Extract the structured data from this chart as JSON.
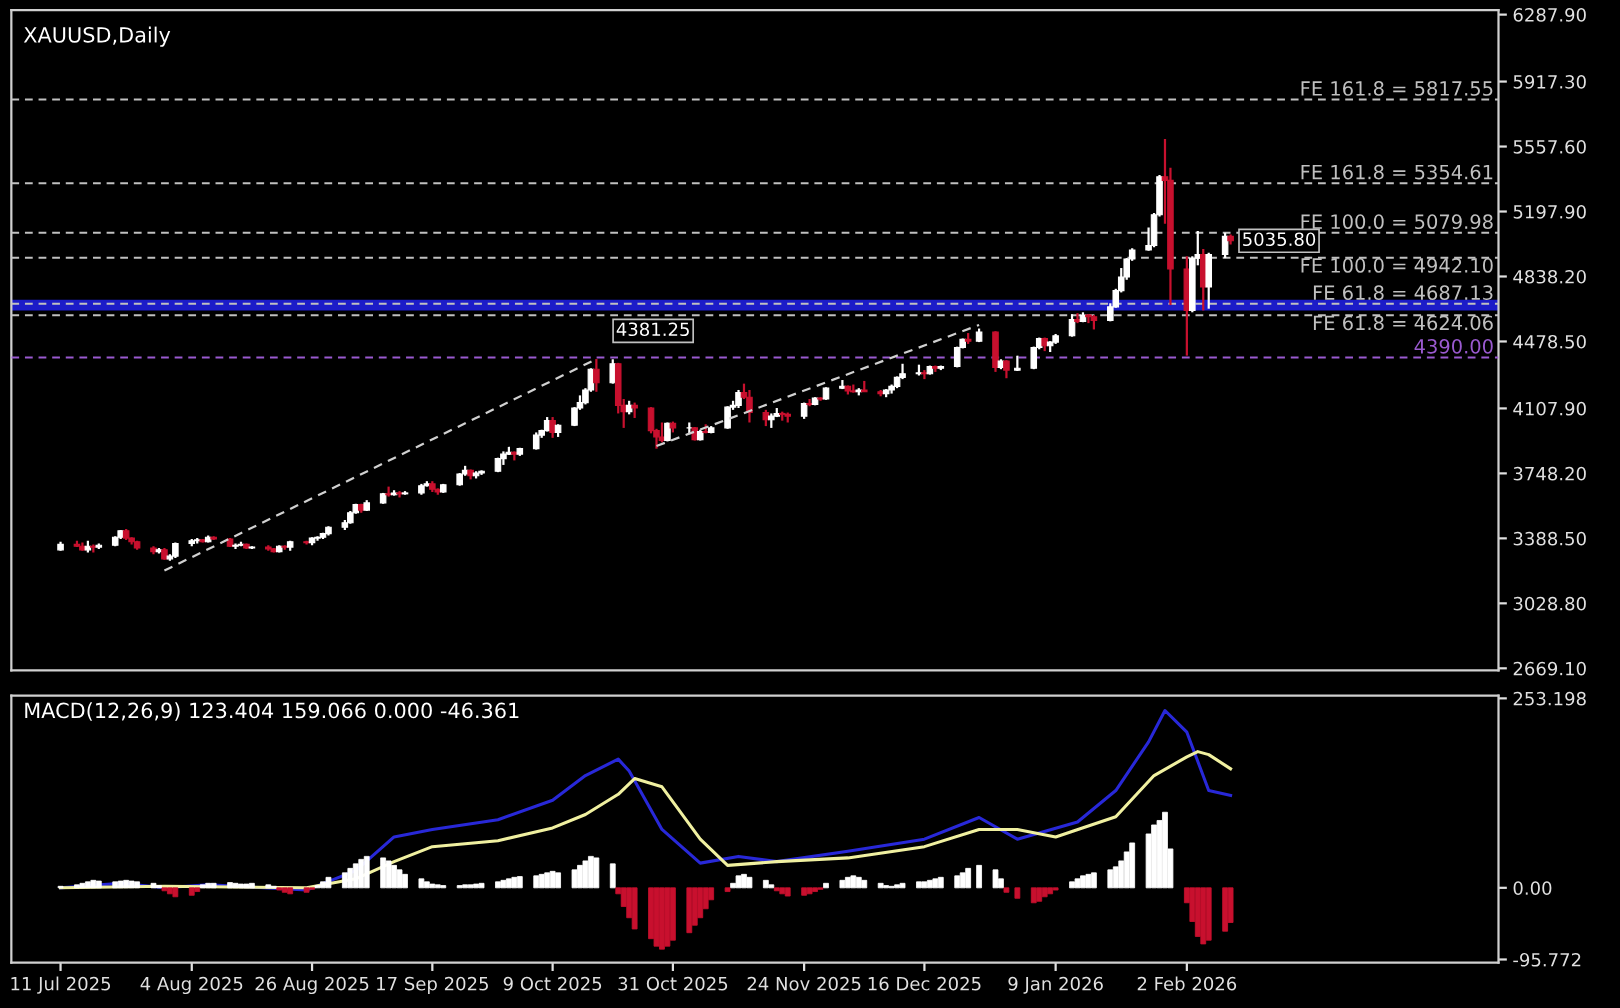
{
  "chart_data": [
    {
      "type": "candlestick",
      "title": "XAUUSD,Daily",
      "x": [
        "2025-07-11",
        "2025-07-14",
        "2025-07-15",
        "2025-07-16",
        "2025-07-17",
        "2025-07-18",
        "2025-07-21",
        "2025-07-22",
        "2025-07-23",
        "2025-07-24",
        "2025-07-25",
        "2025-07-28",
        "2025-07-29",
        "2025-07-30",
        "2025-07-31",
        "2025-08-01",
        "2025-08-04",
        "2025-08-05",
        "2025-08-06",
        "2025-08-07",
        "2025-08-08",
        "2025-08-11",
        "2025-08-12",
        "2025-08-13",
        "2025-08-14",
        "2025-08-15",
        "2025-08-18",
        "2025-08-19",
        "2025-08-20",
        "2025-08-21",
        "2025-08-22",
        "2025-08-25",
        "2025-08-26",
        "2025-08-27",
        "2025-08-28",
        "2025-08-29",
        "2025-09-01",
        "2025-09-02",
        "2025-09-03",
        "2025-09-04",
        "2025-09-05",
        "2025-09-08",
        "2025-09-09",
        "2025-09-10",
        "2025-09-11",
        "2025-09-12",
        "2025-09-15",
        "2025-09-16",
        "2025-09-17",
        "2025-09-18",
        "2025-09-19",
        "2025-09-22",
        "2025-09-23",
        "2025-09-24",
        "2025-09-25",
        "2025-09-26",
        "2025-09-29",
        "2025-09-30",
        "2025-10-01",
        "2025-10-02",
        "2025-10-03",
        "2025-10-06",
        "2025-10-07",
        "2025-10-08",
        "2025-10-09",
        "2025-10-10",
        "2025-10-13",
        "2025-10-14",
        "2025-10-15",
        "2025-10-16",
        "2025-10-17",
        "2025-10-20",
        "2025-10-21",
        "2025-10-22",
        "2025-10-23",
        "2025-10-24",
        "2025-10-27",
        "2025-10-28",
        "2025-10-29",
        "2025-10-30",
        "2025-10-31",
        "2025-11-03",
        "2025-11-04",
        "2025-11-05",
        "2025-11-06",
        "2025-11-07",
        "2025-11-10",
        "2025-11-11",
        "2025-11-12",
        "2025-11-13",
        "2025-11-14",
        "2025-11-17",
        "2025-11-18",
        "2025-11-19",
        "2025-11-20",
        "2025-11-21",
        "2025-11-24",
        "2025-11-25",
        "2025-11-26",
        "2025-11-27",
        "2025-11-28",
        "2025-12-01",
        "2025-12-02",
        "2025-12-03",
        "2025-12-04",
        "2025-12-05",
        "2025-12-08",
        "2025-12-09",
        "2025-12-10",
        "2025-12-11",
        "2025-12-12",
        "2025-12-15",
        "2025-12-16",
        "2025-12-17",
        "2025-12-18",
        "2025-12-19",
        "2025-12-22",
        "2025-12-23",
        "2025-12-24",
        "2025-12-26",
        "2025-12-29",
        "2025-12-30",
        "2025-12-31",
        "2026-01-02",
        "2026-01-05",
        "2026-01-06",
        "2026-01-07",
        "2026-01-08",
        "2026-01-09",
        "2026-01-12",
        "2026-01-13",
        "2026-01-14",
        "2026-01-15",
        "2026-01-16",
        "2026-01-19",
        "2026-01-20",
        "2026-01-21",
        "2026-01-22",
        "2026-01-23",
        "2026-01-26",
        "2026-01-27",
        "2026-01-28",
        "2026-01-29",
        "2026-01-30",
        "2026-02-02",
        "2026-02-03",
        "2026-02-04",
        "2026-02-05",
        "2026-02-06",
        "2026-02-09",
        "2026-02-10"
      ],
      "ohlc": [
        [
          3325,
          3370,
          3320,
          3355
        ],
        [
          3355,
          3375,
          3340,
          3345
        ],
        [
          3345,
          3365,
          3320,
          3325
        ],
        [
          3325,
          3375,
          3310,
          3345
        ],
        [
          3345,
          3355,
          3310,
          3340
        ],
        [
          3340,
          3360,
          3330,
          3350
        ],
        [
          3350,
          3400,
          3345,
          3395
        ],
        [
          3395,
          3435,
          3385,
          3430
        ],
        [
          3430,
          3440,
          3380,
          3390
        ],
        [
          3390,
          3395,
          3355,
          3370
        ],
        [
          3370,
          3375,
          3325,
          3335
        ],
        [
          3335,
          3345,
          3300,
          3315
        ],
        [
          3315,
          3335,
          3305,
          3325
        ],
        [
          3325,
          3335,
          3270,
          3275
        ],
        [
          3275,
          3300,
          3265,
          3290
        ],
        [
          3290,
          3365,
          3280,
          3360
        ],
        [
          3360,
          3385,
          3345,
          3375
        ],
        [
          3375,
          3390,
          3360,
          3380
        ],
        [
          3380,
          3385,
          3365,
          3370
        ],
        [
          3370,
          3405,
          3365,
          3395
        ],
        [
          3395,
          3400,
          3380,
          3385
        ],
        [
          3385,
          3390,
          3340,
          3345
        ],
        [
          3345,
          3360,
          3330,
          3350
        ],
        [
          3350,
          3370,
          3345,
          3355
        ],
        [
          3355,
          3360,
          3330,
          3335
        ],
        [
          3335,
          3345,
          3330,
          3340
        ],
        [
          3340,
          3350,
          3320,
          3330
        ],
        [
          3330,
          3335,
          3310,
          3315
        ],
        [
          3315,
          3350,
          3310,
          3345
        ],
        [
          3345,
          3350,
          3325,
          3340
        ],
        [
          3340,
          3375,
          3320,
          3370
        ],
        [
          3370,
          3375,
          3355,
          3365
        ],
        [
          3365,
          3395,
          3350,
          3390
        ],
        [
          3390,
          3400,
          3375,
          3395
        ],
        [
          3395,
          3420,
          3385,
          3415
        ],
        [
          3415,
          3455,
          3405,
          3450
        ],
        [
          3450,
          3490,
          3435,
          3475
        ],
        [
          3475,
          3540,
          3470,
          3530
        ],
        [
          3530,
          3580,
          3525,
          3575
        ],
        [
          3575,
          3580,
          3530,
          3545
        ],
        [
          3545,
          3600,
          3540,
          3585
        ],
        [
          3585,
          3640,
          3580,
          3635
        ],
        [
          3635,
          3675,
          3620,
          3630
        ],
        [
          3630,
          3655,
          3625,
          3640
        ],
        [
          3640,
          3650,
          3615,
          3635
        ],
        [
          3635,
          3650,
          3630,
          3640
        ],
        [
          3640,
          3690,
          3630,
          3680
        ],
        [
          3680,
          3705,
          3675,
          3690
        ],
        [
          3690,
          3705,
          3645,
          3660
        ],
        [
          3660,
          3665,
          3630,
          3645
        ],
        [
          3645,
          3690,
          3640,
          3685
        ],
        [
          3685,
          3750,
          3680,
          3745
        ],
        [
          3745,
          3790,
          3735,
          3765
        ],
        [
          3765,
          3770,
          3715,
          3735
        ],
        [
          3735,
          3760,
          3720,
          3750
        ],
        [
          3750,
          3765,
          3740,
          3760
        ],
        [
          3760,
          3835,
          3755,
          3830
        ],
        [
          3830,
          3870,
          3795,
          3855
        ],
        [
          3855,
          3895,
          3850,
          3865
        ],
        [
          3865,
          3870,
          3820,
          3855
        ],
        [
          3855,
          3890,
          3845,
          3885
        ],
        [
          3885,
          3975,
          3880,
          3960
        ],
        [
          3960,
          3990,
          3945,
          3985
        ],
        [
          3985,
          4060,
          3980,
          4040
        ],
        [
          4040,
          4060,
          3945,
          3975
        ],
        [
          3975,
          4020,
          3950,
          4015
        ],
        [
          4015,
          4115,
          4010,
          4110
        ],
        [
          4110,
          4180,
          4100,
          4140
        ],
        [
          4140,
          4220,
          4130,
          4210
        ],
        [
          4210,
          4330,
          4200,
          4325
        ],
        [
          4325,
          4381.25,
          4200,
          4250
        ],
        [
          4250,
          4380,
          4245,
          4355
        ],
        [
          4355,
          4360,
          4080,
          4125
        ],
        [
          4125,
          4160,
          4000,
          4090
        ],
        [
          4090,
          4150,
          4075,
          4125
        ],
        [
          4125,
          4140,
          4055,
          4110
        ],
        [
          4110,
          4115,
          3970,
          3985
        ],
        [
          3985,
          3995,
          3885,
          3950
        ],
        [
          3950,
          4030,
          3920,
          3930
        ],
        [
          3930,
          4030,
          3925,
          4025
        ],
        [
          4025,
          4035,
          3975,
          4000
        ],
        [
          4000,
          4030,
          3965,
          4000
        ],
        [
          4000,
          4005,
          3930,
          3935
        ],
        [
          3935,
          3990,
          3930,
          3980
        ],
        [
          3980,
          4020,
          3970,
          3975
        ],
        [
          3975,
          4010,
          3970,
          4000
        ],
        [
          4000,
          4120,
          3995,
          4115
        ],
        [
          4115,
          4150,
          4100,
          4125
        ],
        [
          4125,
          4210,
          4110,
          4195
        ],
        [
          4195,
          4245,
          4160,
          4170
        ],
        [
          4170,
          4210,
          4030,
          4085
        ],
        [
          4085,
          4100,
          4010,
          4045
        ],
        [
          4045,
          4080,
          4000,
          4065
        ],
        [
          4065,
          4110,
          4060,
          4080
        ],
        [
          4080,
          4090,
          4040,
          4075
        ],
        [
          4075,
          4085,
          4030,
          4065
        ],
        [
          4065,
          4140,
          4050,
          4135
        ],
        [
          4135,
          4160,
          4120,
          4130
        ],
        [
          4130,
          4170,
          4125,
          4165
        ],
        [
          4165,
          4170,
          4150,
          4160
        ],
        [
          4160,
          4225,
          4155,
          4220
        ],
        [
          4220,
          4265,
          4215,
          4230
        ],
        [
          4230,
          4235,
          4185,
          4205
        ],
        [
          4205,
          4240,
          4195,
          4200
        ],
        [
          4200,
          4220,
          4180,
          4210
        ],
        [
          4210,
          4260,
          4200,
          4200
        ],
        [
          4200,
          4210,
          4175,
          4190
        ],
        [
          4190,
          4215,
          4170,
          4210
        ],
        [
          4210,
          4240,
          4190,
          4230
        ],
        [
          4230,
          4285,
          4220,
          4280
        ],
        [
          4280,
          4355,
          4270,
          4300
        ],
        [
          4300,
          4350,
          4290,
          4305
        ],
        [
          4305,
          4320,
          4270,
          4300
        ],
        [
          4300,
          4345,
          4295,
          4340
        ],
        [
          4340,
          4345,
          4310,
          4330
        ],
        [
          4330,
          4345,
          4320,
          4340
        ],
        [
          4340,
          4450,
          4335,
          4445
        ],
        [
          4445,
          4495,
          4440,
          4490
        ],
        [
          4490,
          4525,
          4465,
          4480
        ],
        [
          4480,
          4550,
          4475,
          4530
        ],
        [
          4530,
          4535,
          4310,
          4335
        ],
        [
          4335,
          4380,
          4325,
          4370
        ],
        [
          4370,
          4375,
          4275,
          4320
        ],
        [
          4320,
          4400,
          4315,
          4330
        ],
        [
          4330,
          4450,
          4325,
          4445
        ],
        [
          4445,
          4500,
          4435,
          4495
        ],
        [
          4495,
          4500,
          4425,
          4455
        ],
        [
          4455,
          4480,
          4420,
          4475
        ],
        [
          4475,
          4520,
          4465,
          4510
        ],
        [
          4510,
          4630,
          4505,
          4600
        ],
        [
          4600,
          4635,
          4580,
          4590
        ],
        [
          4590,
          4640,
          4585,
          4625
        ],
        [
          4625,
          4630,
          4580,
          4615
        ],
        [
          4615,
          4625,
          4545,
          4595
        ],
        [
          4595,
          4690,
          4590,
          4670
        ],
        [
          4670,
          4770,
          4665,
          4760
        ],
        [
          4760,
          4885,
          4750,
          4835
        ],
        [
          4835,
          4940,
          4820,
          4935
        ],
        [
          4935,
          4995,
          4925,
          4985
        ],
        [
          4985,
          5110,
          4980,
          5010
        ],
        [
          5010,
          5190,
          5000,
          5180
        ],
        [
          5180,
          5400,
          5170,
          5390
        ],
        [
          5390,
          5600,
          5130,
          5370
        ],
        [
          5370,
          5440,
          4680,
          4880
        ],
        [
          4880,
          4950,
          4400,
          4650
        ],
        [
          4650,
          4950,
          4640,
          4940
        ],
        [
          4940,
          5090,
          4900,
          4960
        ],
        [
          4960,
          4990,
          4650,
          4780
        ],
        [
          4780,
          4970,
          4660,
          4960
        ],
        [
          4960,
          5080,
          4940,
          5060
        ],
        [
          5060,
          5070,
          5015,
          5035.8
        ]
      ],
      "series": [
        {
          "type": "line",
          "color": "#d0d0d0",
          "line_style": "dashed",
          "x": [
            "2025-07-30",
            "2025-10-17"
          ],
          "values": [
            3210,
            4381.25
          ]
        },
        {
          "type": "line",
          "color": "#d0d0d0",
          "line_style": "dashed",
          "x": [
            "2025-10-28",
            "2025-12-26"
          ],
          "values": [
            3900,
            4570
          ]
        }
      ],
      "xlim": [
        "2025-07-02",
        "2026-03-31"
      ],
      "ylim": [
        2658,
        6313
      ],
      "yticks": [
        {
          "value": 6287.9,
          "label": "6287.90"
        },
        {
          "value": 5917.3,
          "label": "5917.30"
        },
        {
          "value": 5557.6,
          "label": "5557.60"
        },
        {
          "value": 5197.9,
          "label": "5197.90"
        },
        {
          "value": 4838.2,
          "label": "4838.20"
        },
        {
          "value": 4478.5,
          "label": "4478.50"
        },
        {
          "value": 4107.9,
          "label": "4107.90"
        },
        {
          "value": 3748.2,
          "label": "3748.20"
        },
        {
          "value": 3388.5,
          "label": "3388.50"
        },
        {
          "value": 3028.8,
          "label": "3028.80"
        },
        {
          "value": 2669.1,
          "label": "2669.10"
        }
      ],
      "tick_labels": "y",
      "ref_lines": [
        {
          "axis": "y",
          "value": 5817.55,
          "label": "FE 161.8 = 5817.55",
          "color": "#c0c0c0",
          "line_style": "dashed"
        },
        {
          "axis": "y",
          "value": 5354.61,
          "label": "FE 161.8 = 5354.61",
          "color": "#c0c0c0",
          "line_style": "dashed"
        },
        {
          "axis": "y",
          "value": 5079.98,
          "label": "FE 100.0 = 5079.98",
          "color": "#c0c0c0",
          "line_style": "dashed"
        },
        {
          "axis": "y",
          "value": 4942.1,
          "label": "FE 100.0 = 4942.10",
          "color": "#c0c0c0",
          "line_style": "dashed"
        },
        {
          "axis": "y",
          "value": 4687.13,
          "label": "FE 61.8 = 4687.13",
          "color": "#c0c0c0",
          "line_style": "dashed"
        },
        {
          "axis": "y",
          "value": 4624.06,
          "label": "FE 61.8 = 4624.06",
          "color": "#c0c0c0",
          "line_style": "dashed"
        },
        {
          "axis": "y",
          "value": 4390,
          "label": "4390.00",
          "color": "#9a5ad0",
          "line_style": "dashed"
        }
      ],
      "bands": [
        {
          "axis": "y",
          "from": 4650,
          "to": 4710,
          "color": "#1c1cc8"
        }
      ],
      "annotations": [
        {
          "text": "4381.25",
          "x": "2025-10-17",
          "y": 4381.25
        },
        {
          "text": "5035.80",
          "x": "2026-02-10",
          "y": 5035.8
        }
      ]
    },
    {
      "type": "bar",
      "title": "MACD(12,26,9) 123.404 159.066 0.000 -46.361",
      "x": [
        "2025-07-11",
        "2025-07-14",
        "2025-07-15",
        "2025-07-16",
        "2025-07-17",
        "2025-07-18",
        "2025-07-21",
        "2025-07-22",
        "2025-07-23",
        "2025-07-24",
        "2025-07-25",
        "2025-07-28",
        "2025-07-29",
        "2025-07-30",
        "2025-07-31",
        "2025-08-01",
        "2025-08-04",
        "2025-08-05",
        "2025-08-06",
        "2025-08-07",
        "2025-08-08",
        "2025-08-11",
        "2025-08-12",
        "2025-08-13",
        "2025-08-14",
        "2025-08-15",
        "2025-08-18",
        "2025-08-19",
        "2025-08-20",
        "2025-08-21",
        "2025-08-22",
        "2025-08-25",
        "2025-08-26",
        "2025-08-27",
        "2025-08-28",
        "2025-08-29",
        "2025-09-01",
        "2025-09-02",
        "2025-09-03",
        "2025-09-04",
        "2025-09-05",
        "2025-09-08",
        "2025-09-09",
        "2025-09-10",
        "2025-09-11",
        "2025-09-12",
        "2025-09-15",
        "2025-09-16",
        "2025-09-17",
        "2025-09-18",
        "2025-09-19",
        "2025-09-22",
        "2025-09-23",
        "2025-09-24",
        "2025-09-25",
        "2025-09-26",
        "2025-09-29",
        "2025-09-30",
        "2025-10-01",
        "2025-10-02",
        "2025-10-03",
        "2025-10-06",
        "2025-10-07",
        "2025-10-08",
        "2025-10-09",
        "2025-10-10",
        "2025-10-13",
        "2025-10-14",
        "2025-10-15",
        "2025-10-16",
        "2025-10-17",
        "2025-10-20",
        "2025-10-21",
        "2025-10-22",
        "2025-10-23",
        "2025-10-24",
        "2025-10-27",
        "2025-10-28",
        "2025-10-29",
        "2025-10-30",
        "2025-10-31",
        "2025-11-03",
        "2025-11-04",
        "2025-11-05",
        "2025-11-06",
        "2025-11-07",
        "2025-11-10",
        "2025-11-11",
        "2025-11-12",
        "2025-11-13",
        "2025-11-14",
        "2025-11-17",
        "2025-11-18",
        "2025-11-19",
        "2025-11-20",
        "2025-11-21",
        "2025-11-24",
        "2025-11-25",
        "2025-11-26",
        "2025-11-27",
        "2025-11-28",
        "2025-12-01",
        "2025-12-02",
        "2025-12-03",
        "2025-12-04",
        "2025-12-05",
        "2025-12-08",
        "2025-12-09",
        "2025-12-10",
        "2025-12-11",
        "2025-12-12",
        "2025-12-15",
        "2025-12-16",
        "2025-12-17",
        "2025-12-18",
        "2025-12-19",
        "2025-12-22",
        "2025-12-23",
        "2025-12-24",
        "2025-12-26",
        "2025-12-29",
        "2025-12-30",
        "2025-12-31",
        "2026-01-02",
        "2026-01-05",
        "2026-01-06",
        "2026-01-07",
        "2026-01-08",
        "2026-01-09",
        "2026-01-12",
        "2026-01-13",
        "2026-01-14",
        "2026-01-15",
        "2026-01-16",
        "2026-01-19",
        "2026-01-20",
        "2026-01-21",
        "2026-01-22",
        "2026-01-23",
        "2026-01-26",
        "2026-01-27",
        "2026-01-28",
        "2026-01-29",
        "2026-01-30",
        "2026-02-02",
        "2026-02-03",
        "2026-02-04",
        "2026-02-05",
        "2026-02-06",
        "2026-02-09",
        "2026-02-10"
      ],
      "series": [
        {
          "type": "bar",
          "color": "#ffffff",
          "values": [
            2,
            4,
            6,
            8,
            10,
            9,
            8,
            9,
            10,
            9,
            8,
            6,
            3,
            null,
            null,
            null,
            null,
            null,
            4,
            6,
            6,
            7,
            6,
            5,
            5,
            6,
            4,
            2,
            null,
            null,
            null,
            null,
            null,
            3,
            8,
            14,
            20,
            26,
            32,
            38,
            42,
            40,
            36,
            30,
            24,
            18,
            12,
            8,
            5,
            4,
            3,
            3,
            4,
            4,
            5,
            6,
            8,
            10,
            12,
            14,
            15,
            16,
            18,
            20,
            22,
            20,
            24,
            30,
            36,
            42,
            40,
            32,
            null,
            null,
            null,
            null,
            null,
            null,
            null,
            null,
            null,
            null,
            null,
            null,
            null,
            null,
            null,
            6,
            16,
            18,
            14,
            10,
            4,
            null,
            null,
            null,
            null,
            null,
            null,
            null,
            6,
            10,
            14,
            16,
            14,
            10,
            6,
            3,
            2,
            4,
            6,
            8,
            8,
            10,
            12,
            14,
            16,
            20,
            26,
            30,
            24,
            12,
            null,
            null,
            null,
            null,
            null,
            null,
            null,
            8,
            12,
            16,
            18,
            20,
            24,
            28,
            36,
            48,
            60,
            72,
            84,
            90,
            101,
            52,
            null,
            null,
            null,
            null,
            null,
            null,
            null
          ]
        },
        {
          "type": "bar",
          "color": "#c8102e",
          "values": [
            null,
            null,
            null,
            null,
            null,
            null,
            null,
            null,
            null,
            null,
            null,
            null,
            null,
            -4,
            -8,
            -12,
            -10,
            -5,
            null,
            null,
            null,
            null,
            null,
            null,
            null,
            null,
            null,
            null,
            -3,
            -6,
            -8,
            -6,
            -2,
            null,
            null,
            null,
            null,
            null,
            null,
            null,
            null,
            null,
            null,
            null,
            null,
            null,
            null,
            null,
            null,
            null,
            null,
            null,
            null,
            null,
            null,
            null,
            null,
            null,
            null,
            null,
            null,
            null,
            null,
            null,
            null,
            null,
            null,
            null,
            null,
            null,
            null,
            null,
            -8,
            -25,
            -40,
            -55,
            -68,
            -78,
            -82,
            -78,
            -70,
            -60,
            -50,
            -40,
            -28,
            -16,
            -5,
            null,
            null,
            null,
            null,
            null,
            null,
            -4,
            -8,
            -11,
            -10,
            -8,
            -5,
            -2,
            null,
            null,
            null,
            null,
            null,
            null,
            null,
            null,
            null,
            null,
            null,
            null,
            null,
            null,
            null,
            null,
            null,
            null,
            null,
            null,
            null,
            null,
            -6,
            -14,
            -20,
            -18,
            -12,
            -8,
            -3,
            null,
            null,
            null,
            null,
            null,
            null,
            null,
            null,
            null,
            null,
            null,
            null,
            null,
            null,
            null,
            -20,
            -45,
            -65,
            -75,
            -70,
            -58,
            -46.361
          ]
        },
        {
          "type": "line",
          "color": "#2828d8",
          "x": [
            "2025-07-11",
            "2025-07-22",
            "2025-07-30",
            "2025-08-07",
            "2025-08-25",
            "2025-09-03",
            "2025-09-10",
            "2025-09-17",
            "2025-09-29",
            "2025-10-09",
            "2025-10-15",
            "2025-10-21",
            "2025-10-23",
            "2025-10-29",
            "2025-11-05",
            "2025-11-12",
            "2025-11-19",
            "2025-12-02",
            "2025-12-16",
            "2025-12-26",
            "2026-01-02",
            "2026-01-13",
            "2026-01-20",
            "2026-01-26",
            "2026-01-29",
            "2026-02-02",
            "2026-02-06",
            "2026-02-10"
          ],
          "values": [
            0,
            6,
            0,
            4,
            -3,
            23,
            68,
            78,
            91,
            117,
            150,
            172,
            156,
            78,
            33,
            42,
            35,
            49,
            65,
            94,
            65,
            88,
            130,
            195,
            237,
            208,
            130,
            123.404
          ]
        },
        {
          "type": "line",
          "color": "#f0f0a0",
          "x": [
            "2025-07-11",
            "2025-07-30",
            "2025-08-25",
            "2025-09-03",
            "2025-09-10",
            "2025-09-17",
            "2025-09-29",
            "2025-10-09",
            "2025-10-15",
            "2025-10-21",
            "2025-10-24",
            "2025-10-29",
            "2025-11-05",
            "2025-11-10",
            "2025-11-19",
            "2025-12-02",
            "2025-12-16",
            "2025-12-26",
            "2026-01-02",
            "2026-01-09",
            "2026-01-20",
            "2026-01-27",
            "2026-02-02",
            "2026-02-04",
            "2026-02-06",
            "2026-02-10"
          ],
          "values": [
            0,
            2,
            0,
            12,
            35,
            55,
            63,
            80,
            98,
            125,
            146,
            135,
            65,
            30,
            35,
            40,
            55,
            78,
            78,
            68,
            95,
            150,
            175,
            182,
            178,
            159.066
          ]
        }
      ],
      "xlim": [
        "2025-07-02",
        "2026-03-31"
      ],
      "xticks": [
        {
          "value": "2025-07-11",
          "label": "11 Jul 2025"
        },
        {
          "value": "2025-08-04",
          "label": "4 Aug 2025"
        },
        {
          "value": "2025-08-26",
          "label": "26 Aug 2025"
        },
        {
          "value": "2025-09-17",
          "label": "17 Sep 2025"
        },
        {
          "value": "2025-10-09",
          "label": "9 Oct 2025"
        },
        {
          "value": "2025-10-31",
          "label": "31 Oct 2025"
        },
        {
          "value": "2025-11-24",
          "label": "24 Nov 2025"
        },
        {
          "value": "2025-12-16",
          "label": "16 Dec 2025"
        },
        {
          "value": "2026-01-09",
          "label": "9 Jan 2026"
        },
        {
          "value": "2026-02-02",
          "label": "2 Feb 2026"
        }
      ],
      "ylim": [
        -100,
        257
      ],
      "yticks": [
        253.198,
        {
          "value": 0,
          "label": "0.00"
        },
        {
          "value": -95.772,
          "label": "-95.772"
        }
      ]
    }
  ]
}
